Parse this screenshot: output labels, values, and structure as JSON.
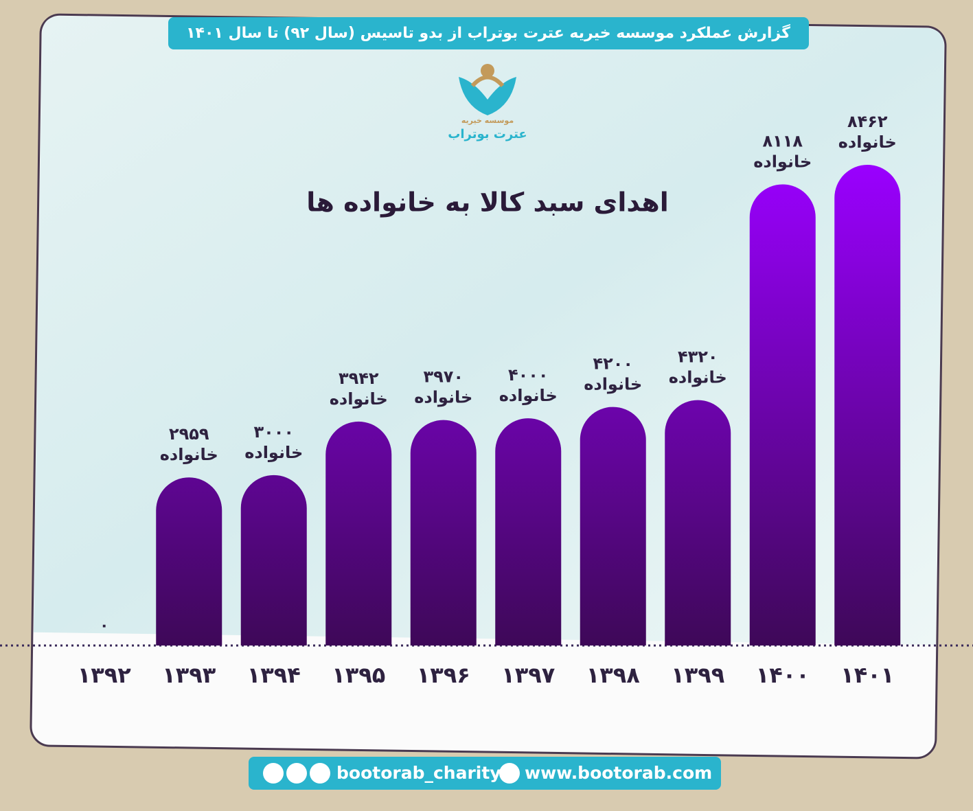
{
  "header": {
    "title": "گزارش عملکرد موسسه خیریه عترت بوتراب از بدو تاسیس (سال ۹۲) تا سال ۱۴۰۱"
  },
  "logo": {
    "subtitle": "موسسه خیریه",
    "name": "عترت بوتراب"
  },
  "chart_data": {
    "type": "bar",
    "title": "اهدای سبد کالا به خانواده ها",
    "categories": [
      "۱۳۹۲",
      "۱۳۹۳",
      "۱۳۹۴",
      "۱۳۹۵",
      "۱۳۹۶",
      "۱۳۹۷",
      "۱۳۹۸",
      "۱۳۹۹",
      "۱۴۰۰",
      "۱۴۰۱"
    ],
    "values": [
      0,
      2959,
      3000,
      3942,
      3970,
      4000,
      4200,
      4320,
      8118,
      8462
    ],
    "value_labels": [
      "۰",
      "۲۹۵۹",
      "۳۰۰۰",
      "۳۹۴۲",
      "۳۹۷۰",
      "۴۰۰۰",
      "۴۲۰۰",
      "۴۳۲۰",
      "۸۱۱۸",
      "۸۴۶۲"
    ],
    "unit": "خانواده",
    "color": [
      "#9a00ff",
      "#3e0858"
    ]
  },
  "footer": {
    "social": "bootorab_charity",
    "website": "www.bootorab.com"
  }
}
